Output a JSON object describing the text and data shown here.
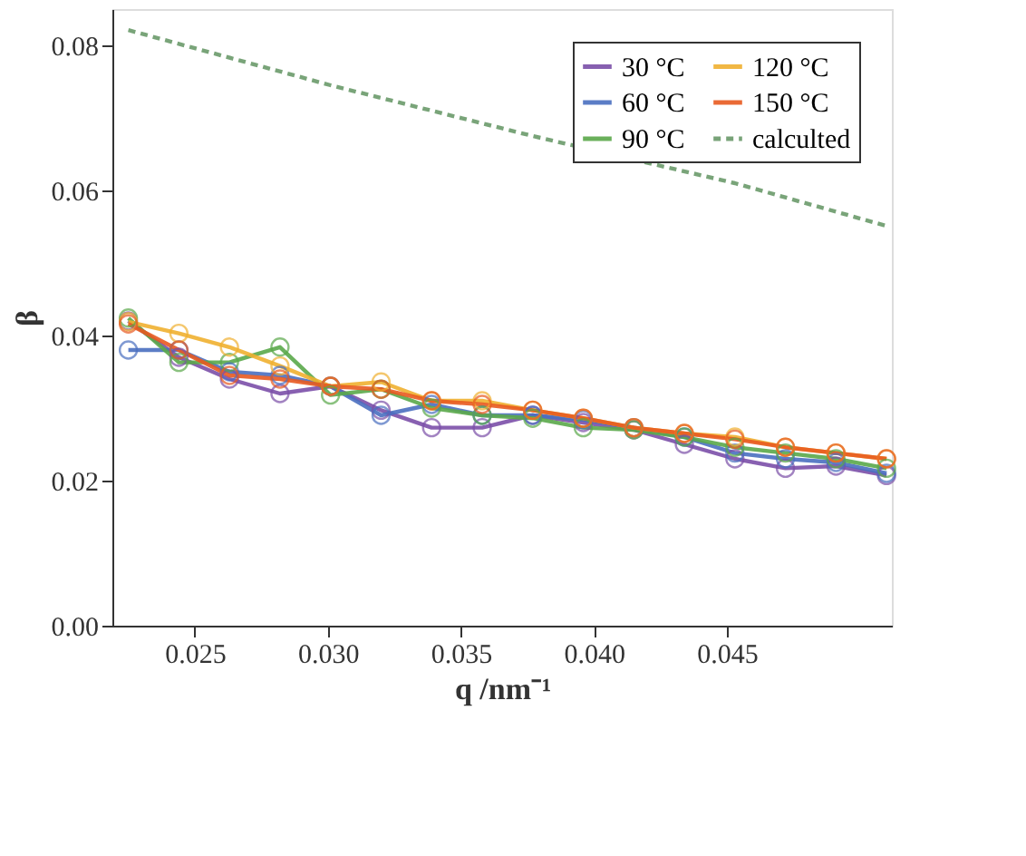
{
  "chart_data": {
    "type": "line",
    "xlabel": "q /nm⁻¹",
    "ylabel": "β",
    "x": [
      0.0225,
      0.0244,
      0.0263,
      0.0282,
      0.0301,
      0.032,
      0.0339,
      0.0358,
      0.0377,
      0.0396,
      0.0415,
      0.0434,
      0.0453,
      0.0472,
      0.0491,
      0.051
    ],
    "series": [
      {
        "name": "30 °C",
        "color": "#7b4fa8",
        "values": [
          0.042,
          0.037,
          0.034,
          0.032,
          0.033,
          0.0297,
          0.0273,
          0.0273,
          0.029,
          0.028,
          0.027,
          0.025,
          0.023,
          0.0217,
          0.022,
          0.0207
        ]
      },
      {
        "name": "60 °C",
        "color": "#4a6fc0",
        "values": [
          0.038,
          0.038,
          0.035,
          0.0345,
          0.033,
          0.029,
          0.0305,
          0.029,
          0.029,
          0.0284,
          0.0273,
          0.026,
          0.0238,
          0.023,
          0.0225,
          0.021
        ]
      },
      {
        "name": "90 °C",
        "color": "#5aa84a",
        "values": [
          0.0424,
          0.0363,
          0.0363,
          0.0384,
          0.0318,
          0.0326,
          0.03,
          0.029,
          0.0286,
          0.0273,
          0.027,
          0.026,
          0.0246,
          0.0238,
          0.023,
          0.0217
        ]
      },
      {
        "name": "120 °C",
        "color": "#f0b030",
        "values": [
          0.0419,
          0.0403,
          0.0384,
          0.0358,
          0.033,
          0.0336,
          0.031,
          0.031,
          0.0297,
          0.0286,
          0.0273,
          0.0265,
          0.026,
          0.0246,
          0.0238,
          0.023
        ]
      },
      {
        "name": "150 °C",
        "color": "#e85a20",
        "values": [
          0.0416,
          0.038,
          0.0345,
          0.034,
          0.033,
          0.0326,
          0.031,
          0.0305,
          0.0297,
          0.0286,
          0.0273,
          0.0265,
          0.0257,
          0.0246,
          0.0238,
          0.023
        ]
      },
      {
        "name": "calculted",
        "color": "#6a9a6a",
        "marker": "none",
        "line_style": "dashed",
        "x": [
          0.0225,
          0.0301,
          0.0377,
          0.0453,
          0.051
        ],
        "values": [
          0.0821,
          0.0745,
          0.0675,
          0.061,
          0.0551
        ]
      }
    ],
    "marker": "circle",
    "line_style": "solid",
    "xlim": [
      0.0219,
      0.0512
    ],
    "xticks": [
      0.025,
      {
        "value": 0.03,
        "label": "0.030"
      },
      0.035,
      {
        "value": 0.04,
        "label": "0.040"
      },
      0.045
    ],
    "ylim": [
      0,
      0.085
    ],
    "yticks": [
      {
        "value": 0,
        "label": "0.00"
      },
      0.02,
      0.04,
      0.06,
      0.08
    ],
    "grid": false,
    "legend": "top right"
  }
}
